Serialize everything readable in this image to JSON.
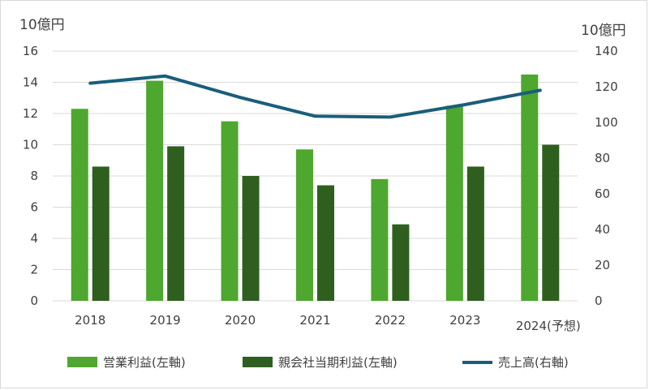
{
  "chart_data": {
    "type": "bar",
    "title": "",
    "left_axis_unit": "10億円",
    "right_axis_unit": "10億円",
    "categories": [
      "2018",
      "2019",
      "2020",
      "2021",
      "2022",
      "2023",
      "2024(予想)"
    ],
    "y_left": {
      "min": 0,
      "max": 16,
      "step": 2,
      "ticks": [
        "0",
        "2",
        "4",
        "6",
        "8",
        "10",
        "12",
        "14",
        "16"
      ]
    },
    "y_right": {
      "min": 0,
      "max": 140,
      "step": 20,
      "ticks": [
        "0",
        "20",
        "40",
        "60",
        "80",
        "100",
        "120",
        "140"
      ]
    },
    "series": [
      {
        "name": "営業利益(左軸)",
        "type": "bar",
        "axis": "left",
        "color": "#4ea72e",
        "values": [
          12.3,
          14.1,
          11.5,
          9.7,
          7.8,
          12.5,
          14.5
        ]
      },
      {
        "name": "親会社当期利益(左軸)",
        "type": "bar",
        "axis": "left",
        "color": "#2e5f1f",
        "values": [
          8.6,
          9.9,
          8.0,
          7.4,
          4.9,
          8.6,
          10.0
        ]
      },
      {
        "name": "売上高(右軸)",
        "type": "line",
        "axis": "right",
        "color": "#1a5e7a",
        "values": [
          122,
          126,
          114,
          103.5,
          103,
          110,
          118
        ]
      }
    ],
    "grid": "horizontal",
    "legend_position": "bottom"
  }
}
